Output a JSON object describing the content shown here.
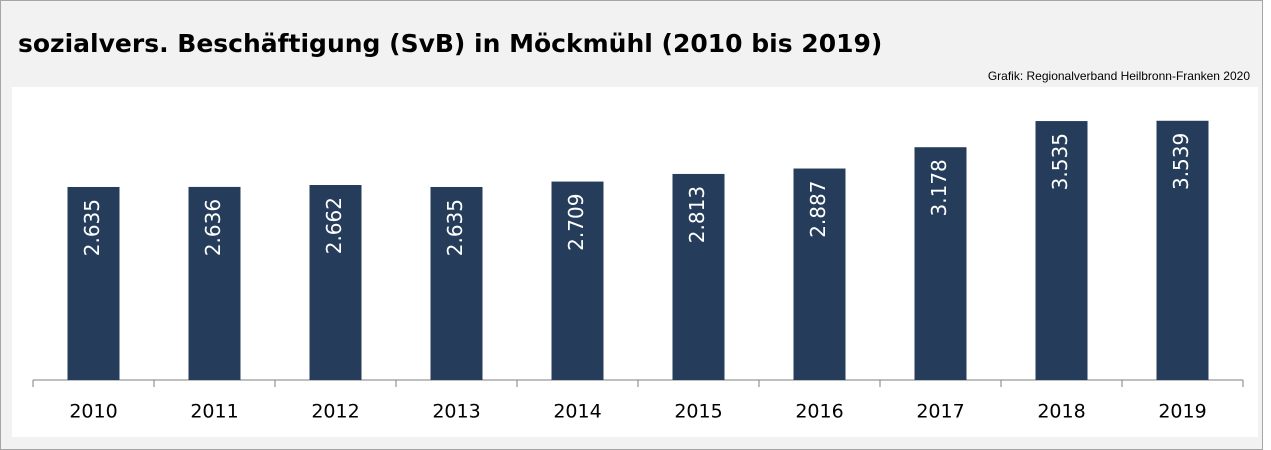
{
  "chart_data": {
    "type": "bar",
    "title": "sozialvers. Beschäftigung (SvB) in Möckmühl (2010 bis 2019)",
    "source": "Grafik: Regionalverband Heilbronn-Franken 2020",
    "categories": [
      "2010",
      "2011",
      "2012",
      "2013",
      "2014",
      "2015",
      "2016",
      "2017",
      "2018",
      "2019"
    ],
    "values": [
      2635,
      2636,
      2662,
      2635,
      2709,
      2813,
      2887,
      3178,
      3535,
      3539
    ],
    "value_labels": [
      "2.635",
      "2.636",
      "2.662",
      "2.635",
      "2.709",
      "2.813",
      "2.887",
      "3.178",
      "3.535",
      "3.539"
    ],
    "color": "#253d5b",
    "ylim": [
      0,
      4000
    ]
  }
}
